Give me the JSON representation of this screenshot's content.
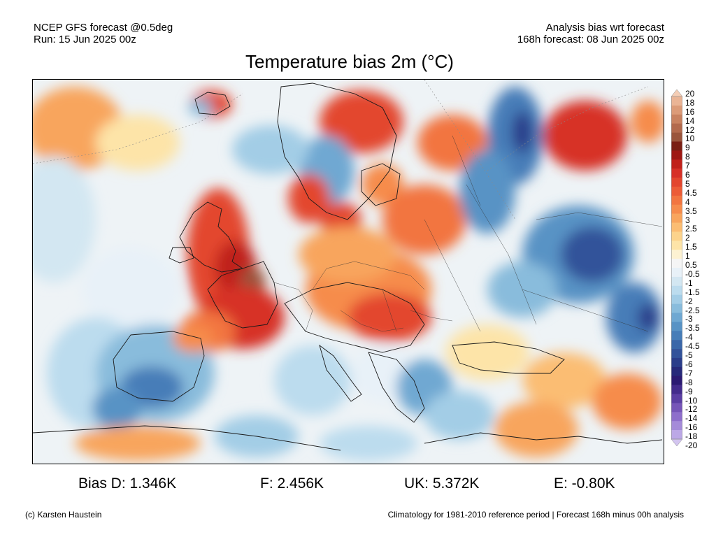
{
  "header": {
    "model": "NCEP GFS forecast @0.5deg",
    "run": "Run: 15 Jun 2025 00z",
    "analysis": "Analysis bias wrt forecast",
    "forecast": "168h forecast: 08 Jun 2025 00z"
  },
  "title": "Temperature bias 2m (°C)",
  "stats": {
    "bias_d": "Bias D: 1.346K",
    "f": "F: 2.456K",
    "uk": "UK: 5.372K",
    "e": "E: -0.80K"
  },
  "footer": {
    "credit": "(c) Karsten Haustein",
    "note": "Climatology for 1981-2010 reference period | Forecast 168h minus 00h analysis"
  },
  "colorbar": {
    "labels": [
      "20",
      "18",
      "16",
      "14",
      "12",
      "10",
      "9",
      "8",
      "7",
      "6",
      "5",
      "4.5",
      "4",
      "3.5",
      "3",
      "2.5",
      "2",
      "1.5",
      "1",
      "0.5",
      "-0.5",
      "-1",
      "-1.5",
      "-2",
      "-2.5",
      "-3",
      "-3.5",
      "-4",
      "-4.5",
      "-5",
      "-6",
      "-7",
      "-8",
      "-9",
      "-10",
      "-12",
      "-14",
      "-16",
      "-18",
      "-20"
    ],
    "colors": [
      "#f4cdb5",
      "#eab495",
      "#dc9b78",
      "#c98260",
      "#b36a4d",
      "#9a553c",
      "#7a1f13",
      "#9e1712",
      "#c0201a",
      "#d73027",
      "#e3462e",
      "#ec5c37",
      "#f27540",
      "#f68c4c",
      "#f8a55d",
      "#fbbd73",
      "#fcd38c",
      "#fde4a8",
      "#fdf2d2",
      "#f5f5f5",
      "#e8f1f8",
      "#d3e7f2",
      "#bcdcee",
      "#a3cde6",
      "#89bcdc",
      "#6fa8d2",
      "#5893c5",
      "#467db8",
      "#3a67a9",
      "#32529a",
      "#2a3d8a",
      "#26297a",
      "#2b1a72",
      "#432b8c",
      "#5b3ea3",
      "#7655b8",
      "#8e6ecb",
      "#a58bd9",
      "#bca8e6",
      "#d3c5f0"
    ]
  }
}
